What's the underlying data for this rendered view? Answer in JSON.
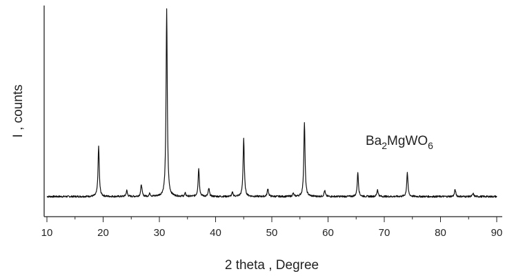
{
  "chart_data": {
    "type": "line",
    "title": "",
    "xlabel": "2 theta , Degree",
    "ylabel": "I , counts",
    "xlim": [
      10,
      90
    ],
    "ylim": [
      0,
      105
    ],
    "grid": false,
    "legend": "none",
    "x_ticks": [
      10,
      20,
      30,
      40,
      50,
      60,
      70,
      80,
      90
    ],
    "x_tick_labels": [
      "10",
      "20",
      "30",
      "40",
      "50",
      "60",
      "70",
      "80",
      "90"
    ],
    "y_ticks_labeled": false,
    "annotation": {
      "text_main": "Ba",
      "sub1": "2",
      "text_mid": "MgWO",
      "sub2": "6"
    },
    "series": [
      {
        "color": "#111111",
        "baseline": 10,
        "peaks": [
          {
            "x": 19.2,
            "y": 35
          },
          {
            "x": 24.2,
            "y": 13
          },
          {
            "x": 26.8,
            "y": 16
          },
          {
            "x": 28.3,
            "y": 11.5
          },
          {
            "x": 31.3,
            "y": 103
          },
          {
            "x": 34.6,
            "y": 11.5
          },
          {
            "x": 37.0,
            "y": 24
          },
          {
            "x": 38.8,
            "y": 14
          },
          {
            "x": 43.0,
            "y": 12
          },
          {
            "x": 45.0,
            "y": 39
          },
          {
            "x": 49.3,
            "y": 14
          },
          {
            "x": 53.8,
            "y": 11.5
          },
          {
            "x": 55.8,
            "y": 47
          },
          {
            "x": 59.4,
            "y": 13
          },
          {
            "x": 65.3,
            "y": 22
          },
          {
            "x": 68.8,
            "y": 13.5
          },
          {
            "x": 74.1,
            "y": 22
          },
          {
            "x": 82.6,
            "y": 13.5
          },
          {
            "x": 85.8,
            "y": 11.5
          }
        ]
      }
    ]
  }
}
